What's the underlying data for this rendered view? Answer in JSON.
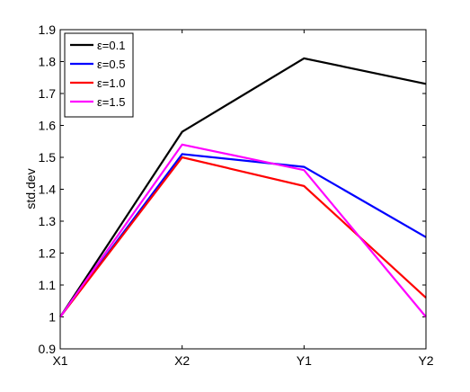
{
  "chart_data": {
    "type": "line",
    "title": "",
    "xlabel": "",
    "ylabel": "std.dev",
    "categories": [
      "X1",
      "X2",
      "Y1",
      "Y2"
    ],
    "ylim": [
      0.9,
      1.9
    ],
    "yticks": [
      "0.9",
      "1",
      "1.1",
      "1.2",
      "1.3",
      "1.4",
      "1.5",
      "1.6",
      "1.7",
      "1.8",
      "1.9"
    ],
    "grid": false,
    "legend_position": "top-left",
    "series": [
      {
        "name": "ε=0.1",
        "color": "#000000",
        "values": [
          1.0,
          1.58,
          1.81,
          1.73
        ]
      },
      {
        "name": "ε=0.5",
        "color": "#0000ff",
        "values": [
          1.0,
          1.51,
          1.47,
          1.25
        ]
      },
      {
        "name": "ε=1.0",
        "color": "#ff0000",
        "values": [
          1.0,
          1.5,
          1.41,
          1.06
        ]
      },
      {
        "name": "ε=1.5",
        "color": "#ff00ff",
        "values": [
          1.0,
          1.54,
          1.46,
          1.0
        ]
      }
    ]
  }
}
